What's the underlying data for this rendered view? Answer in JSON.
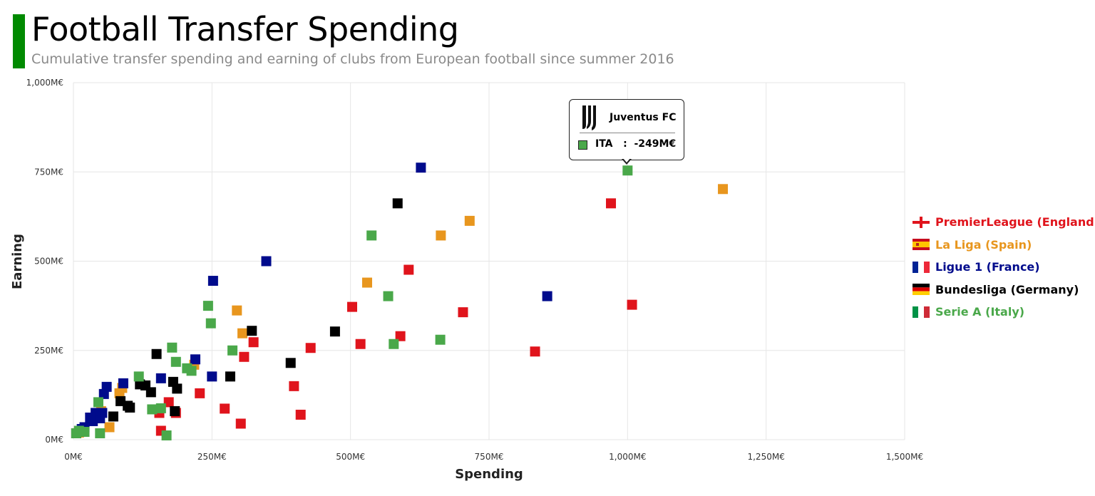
{
  "header": {
    "title": "Football Transfer Spending",
    "subtitle": "Cumulative transfer spending and earning of clubs from European football since summer 2016"
  },
  "tooltip": {
    "club": "Juventus FC",
    "country": "ITA",
    "separator": ":",
    "value": "-249M€"
  },
  "chart_data": {
    "type": "scatter",
    "xlabel": "Spending",
    "ylabel": "Earning",
    "xlim": [
      0,
      1500
    ],
    "ylim": [
      0,
      1000
    ],
    "x_ticks": [
      0,
      250,
      500,
      750,
      1000,
      1250,
      1500
    ],
    "y_ticks": [
      0,
      250,
      500,
      750,
      1000
    ],
    "x_tick_labels": [
      "0M€",
      "250M€",
      "500M€",
      "750M€",
      "1,000M€",
      "1,250M€",
      "1,500M€"
    ],
    "y_tick_labels": [
      "0M€",
      "250M€",
      "500M€",
      "750M€",
      "1,000M€"
    ],
    "grid": true,
    "legend_position": "right",
    "series": [
      {
        "name": "PremierLeague (England)",
        "color": "#e0141c",
        "flag": "england-flag-icon",
        "points": [
          [
            970,
            662
          ],
          [
            1008,
            378
          ],
          [
            833,
            247
          ],
          [
            703,
            357
          ],
          [
            605,
            476
          ],
          [
            590,
            290
          ],
          [
            518,
            268
          ],
          [
            503,
            372
          ],
          [
            428,
            257
          ],
          [
            410,
            70
          ],
          [
            398,
            150
          ],
          [
            325,
            273
          ],
          [
            308,
            232
          ],
          [
            302,
            45
          ],
          [
            273,
            87
          ],
          [
            228,
            130
          ],
          [
            185,
            75
          ],
          [
            172,
            105
          ],
          [
            158,
            25
          ],
          [
            155,
            75
          ]
        ]
      },
      {
        "name": "La Liga (Spain)",
        "color": "#e8961e",
        "flag": "spain-flag-icon",
        "points": [
          [
            1172,
            702
          ],
          [
            715,
            613
          ],
          [
            663,
            572
          ],
          [
            530,
            440
          ],
          [
            295,
            362
          ],
          [
            305,
            298
          ],
          [
            88,
            145
          ],
          [
            83,
            130
          ],
          [
            65,
            35
          ],
          [
            50,
            80
          ],
          [
            10,
            20
          ],
          [
            218,
            210
          ]
        ]
      },
      {
        "name": "Ligue 1 (France)",
        "color": "#000b8c",
        "flag": "france-flag-icon",
        "points": [
          [
            627,
            762
          ],
          [
            855,
            402
          ],
          [
            348,
            500
          ],
          [
            252,
            445
          ],
          [
            250,
            177
          ],
          [
            220,
            225
          ],
          [
            158,
            172
          ],
          [
            90,
            158
          ],
          [
            60,
            148
          ],
          [
            55,
            128
          ],
          [
            52,
            75
          ],
          [
            48,
            60
          ],
          [
            40,
            75
          ],
          [
            35,
            52
          ],
          [
            30,
            62
          ],
          [
            20,
            35
          ],
          [
            15,
            30
          ]
        ]
      },
      {
        "name": "Bundesliga (Germany)",
        "color": "#000000",
        "flag": "germany-flag-icon",
        "points": [
          [
            585,
            662
          ],
          [
            472,
            303
          ],
          [
            392,
            215
          ],
          [
            322,
            305
          ],
          [
            283,
            177
          ],
          [
            187,
            143
          ],
          [
            180,
            162
          ],
          [
            183,
            80
          ],
          [
            150,
            240
          ],
          [
            140,
            133
          ],
          [
            130,
            152
          ],
          [
            120,
            155
          ],
          [
            102,
            90
          ],
          [
            98,
            95
          ],
          [
            85,
            108
          ],
          [
            72,
            65
          ],
          [
            5,
            18
          ]
        ]
      },
      {
        "name": "Serie A (Italy)",
        "color": "#4aa84a",
        "flag": "italy-flag-icon",
        "points": [
          [
            1000,
            754
          ],
          [
            538,
            572
          ],
          [
            568,
            402
          ],
          [
            662,
            280
          ],
          [
            578,
            268
          ],
          [
            243,
            375
          ],
          [
            248,
            326
          ],
          [
            287,
            250
          ],
          [
            178,
            258
          ],
          [
            185,
            218
          ],
          [
            205,
            200
          ],
          [
            213,
            193
          ],
          [
            118,
            177
          ],
          [
            158,
            88
          ],
          [
            142,
            85
          ],
          [
            168,
            12
          ],
          [
            48,
            18
          ],
          [
            45,
            105
          ],
          [
            20,
            22
          ],
          [
            10,
            25
          ],
          [
            5,
            18
          ]
        ]
      }
    ]
  }
}
